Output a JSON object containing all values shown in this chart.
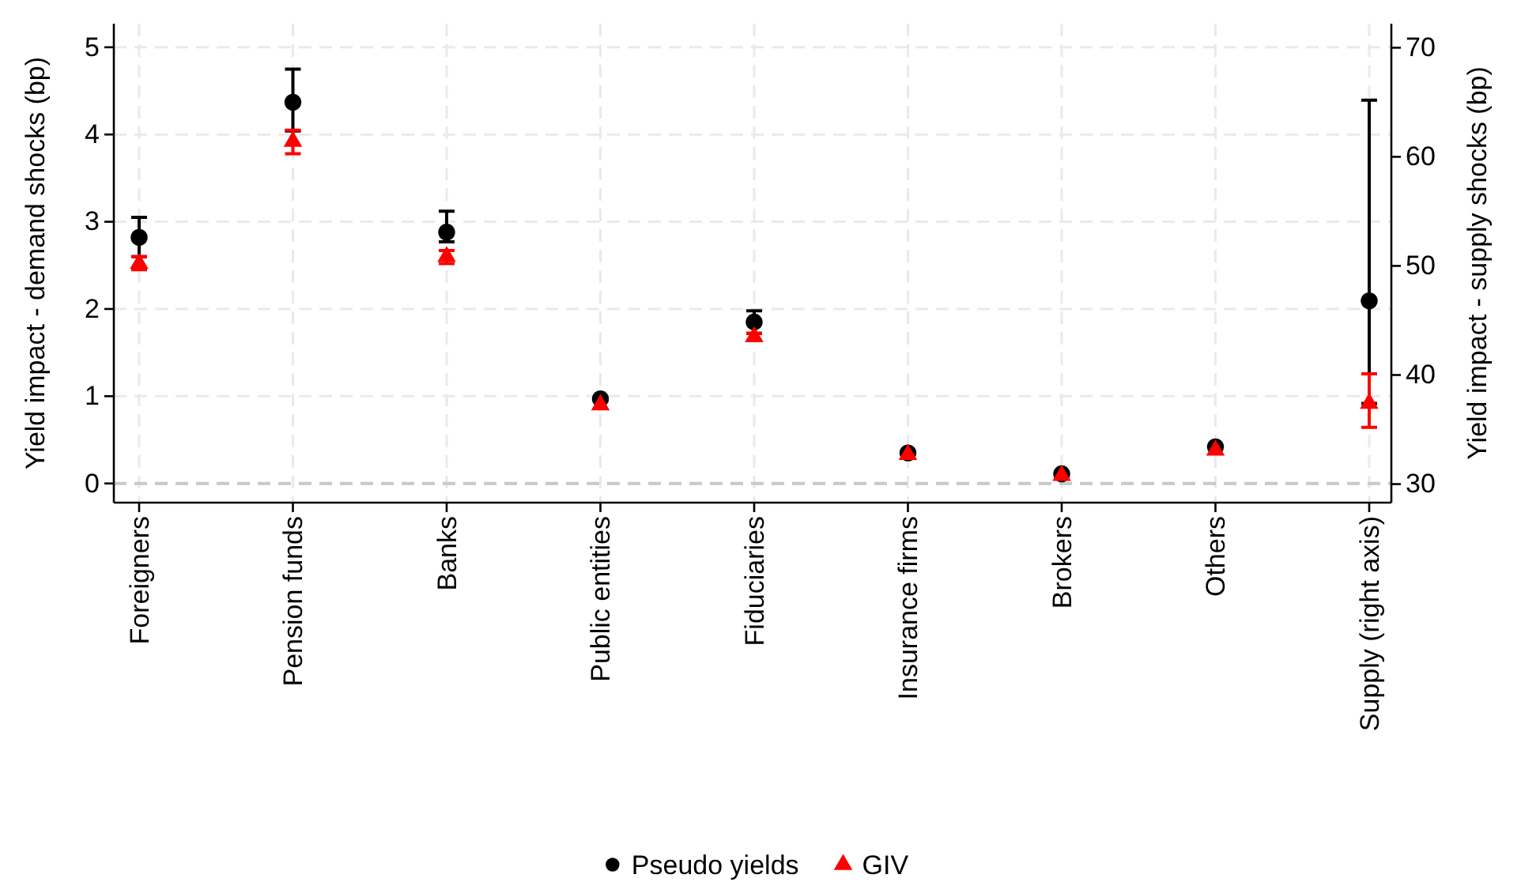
{
  "chart_data": {
    "type": "scatter",
    "categories": [
      "Foreigners",
      "Pension funds",
      "Banks",
      "Public entities",
      "Fiduciaries",
      "Insurance firms",
      "Brokers",
      "Others",
      "Supply (right axis)"
    ],
    "ylabel": "Yield impact - demand shocks (bp)",
    "y2label": "Yield impact - supply shocks (bp)",
    "ylim": [
      -0.22,
      5.27
    ],
    "yticks": [
      0,
      1,
      2,
      3,
      4,
      5
    ],
    "y2lim": [
      28.3,
      72.2
    ],
    "y2ticks": [
      30,
      40,
      50,
      60,
      70
    ],
    "grid": true,
    "legend": "bottom",
    "ref_lines": [
      {
        "axis": "y",
        "value": 0,
        "color": "#c8c8c8",
        "line_style": "dashed"
      }
    ],
    "series": [
      {
        "name": "Pseudo yields",
        "color": "#000000",
        "marker": "circle",
        "values": [
          2.82,
          4.37,
          2.88,
          0.97,
          1.85,
          0.35,
          0.11,
          0.42,
          null
        ],
        "errors": [
          [
            2.6,
            3.05
          ],
          [
            4.04,
            4.75
          ],
          [
            2.77,
            3.12
          ],
          null,
          [
            1.72,
            1.98
          ],
          null,
          null,
          null,
          null
        ]
      },
      {
        "name": "GIV",
        "color": "#ff0000",
        "marker": "triangle",
        "values": [
          2.52,
          3.92,
          2.6,
          0.9,
          1.68,
          0.33,
          0.09,
          0.38,
          null
        ],
        "errors": [
          [
            2.45,
            2.6
          ],
          [
            3.78,
            4.05
          ],
          [
            2.52,
            2.67
          ],
          null,
          [
            1.64,
            1.72
          ],
          null,
          null,
          null,
          null
        ]
      },
      {
        "axis": "y2",
        "color": "#000000",
        "marker": "circle",
        "values": [
          null,
          null,
          null,
          null,
          null,
          null,
          null,
          null,
          46.8
        ],
        "errors": [
          null,
          null,
          null,
          null,
          null,
          null,
          null,
          null,
          [
            37.4,
            65.2
          ]
        ]
      },
      {
        "axis": "y2",
        "color": "#ff0000",
        "marker": "triangle",
        "values": [
          null,
          null,
          null,
          null,
          null,
          null,
          null,
          null,
          37.4
        ],
        "errors": [
          null,
          null,
          null,
          null,
          null,
          null,
          null,
          null,
          [
            35.2,
            40.1
          ]
        ]
      }
    ]
  }
}
